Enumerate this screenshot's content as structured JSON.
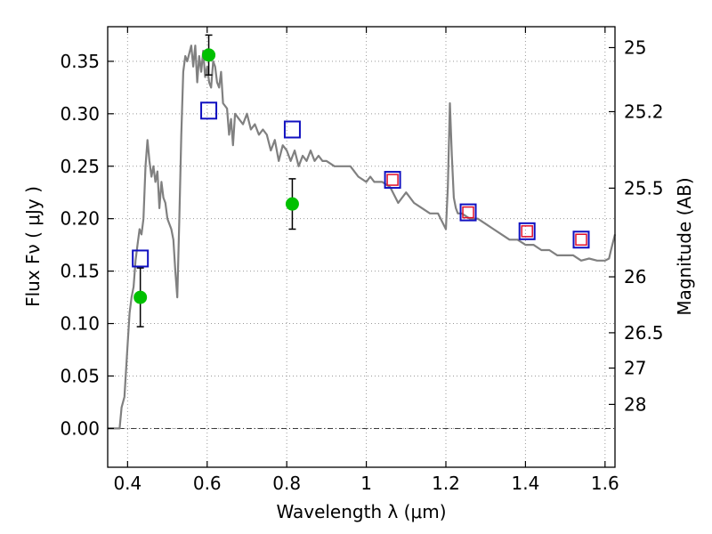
{
  "chart_data": {
    "type": "scatter",
    "xlabel": "Wavelength  λ (μm)",
    "ylabel": "Flux  Fν  ( μJy )",
    "y2label": "Magnitude (AB)",
    "xlim": [
      0.35,
      1.625
    ],
    "ylim": [
      -0.037,
      0.383
    ],
    "grid": true,
    "x_ticks": [
      {
        "value": 0.4,
        "label": "0.4"
      },
      {
        "value": 0.6,
        "label": "0.6"
      },
      {
        "value": 0.8,
        "label": "0.8"
      },
      {
        "value": 1.0,
        "label": "1"
      },
      {
        "value": 1.2,
        "label": "1.2"
      },
      {
        "value": 1.4,
        "label": "1.4"
      },
      {
        "value": 1.6,
        "label": "1.6"
      }
    ],
    "y_ticks": [
      {
        "value": 0.0,
        "label": "0.00"
      },
      {
        "value": 0.05,
        "label": "0.05"
      },
      {
        "value": 0.1,
        "label": "0.10"
      },
      {
        "value": 0.15,
        "label": "0.15"
      },
      {
        "value": 0.2,
        "label": "0.20"
      },
      {
        "value": 0.25,
        "label": "0.25"
      },
      {
        "value": 0.3,
        "label": "0.30"
      },
      {
        "value": 0.35,
        "label": "0.35"
      }
    ],
    "y2_ticks": [
      {
        "mag": 25.0,
        "label": "25"
      },
      {
        "mag": 25.2,
        "label": "25.2"
      },
      {
        "mag": 25.5,
        "label": "25.5"
      },
      {
        "mag": 26.0,
        "label": "26"
      },
      {
        "mag": 26.5,
        "label": "26.5"
      },
      {
        "mag": 27.0,
        "label": "27"
      },
      {
        "mag": 28.0,
        "label": "28"
      }
    ],
    "series": [
      {
        "kind": "line",
        "color": "#808080",
        "x": [
          0.35,
          0.38,
          0.385,
          0.392,
          0.4,
          0.405,
          0.41,
          0.415,
          0.42,
          0.425,
          0.43,
          0.435,
          0.44,
          0.445,
          0.45,
          0.455,
          0.46,
          0.465,
          0.47,
          0.475,
          0.48,
          0.485,
          0.49,
          0.495,
          0.5,
          0.505,
          0.51,
          0.515,
          0.52,
          0.525,
          0.53,
          0.535,
          0.54,
          0.545,
          0.55,
          0.56,
          0.565,
          0.57,
          0.575,
          0.58,
          0.585,
          0.59,
          0.595,
          0.6,
          0.605,
          0.61,
          0.615,
          0.62,
          0.625,
          0.63,
          0.635,
          0.64,
          0.65,
          0.655,
          0.66,
          0.665,
          0.67,
          0.68,
          0.69,
          0.7,
          0.71,
          0.72,
          0.73,
          0.74,
          0.75,
          0.76,
          0.77,
          0.78,
          0.79,
          0.8,
          0.81,
          0.82,
          0.83,
          0.84,
          0.85,
          0.86,
          0.87,
          0.88,
          0.89,
          0.9,
          0.92,
          0.94,
          0.96,
          0.98,
          1.0,
          1.01,
          1.02,
          1.04,
          1.06,
          1.08,
          1.09,
          1.1,
          1.12,
          1.14,
          1.16,
          1.18,
          1.2,
          1.205,
          1.21,
          1.215,
          1.22,
          1.225,
          1.23,
          1.24,
          1.26,
          1.28,
          1.3,
          1.32,
          1.34,
          1.36,
          1.38,
          1.4,
          1.42,
          1.44,
          1.46,
          1.48,
          1.5,
          1.52,
          1.54,
          1.56,
          1.58,
          1.6,
          1.61,
          1.615,
          1.625
        ],
        "y": [
          0.0,
          0.0,
          0.02,
          0.03,
          0.08,
          0.11,
          0.125,
          0.135,
          0.16,
          0.175,
          0.19,
          0.185,
          0.2,
          0.25,
          0.275,
          0.255,
          0.24,
          0.25,
          0.235,
          0.245,
          0.21,
          0.235,
          0.22,
          0.215,
          0.2,
          0.195,
          0.19,
          0.18,
          0.15,
          0.125,
          0.2,
          0.28,
          0.34,
          0.355,
          0.35,
          0.365,
          0.345,
          0.365,
          0.33,
          0.355,
          0.34,
          0.36,
          0.335,
          0.345,
          0.33,
          0.325,
          0.35,
          0.345,
          0.33,
          0.325,
          0.34,
          0.31,
          0.305,
          0.28,
          0.295,
          0.27,
          0.3,
          0.295,
          0.29,
          0.3,
          0.285,
          0.29,
          0.28,
          0.285,
          0.28,
          0.265,
          0.275,
          0.255,
          0.27,
          0.265,
          0.255,
          0.265,
          0.25,
          0.26,
          0.255,
          0.265,
          0.255,
          0.26,
          0.255,
          0.255,
          0.25,
          0.25,
          0.25,
          0.24,
          0.235,
          0.24,
          0.235,
          0.235,
          0.23,
          0.215,
          0.22,
          0.225,
          0.215,
          0.21,
          0.205,
          0.205,
          0.19,
          0.23,
          0.31,
          0.26,
          0.22,
          0.21,
          0.205,
          0.205,
          0.2,
          0.2,
          0.195,
          0.19,
          0.185,
          0.18,
          0.18,
          0.175,
          0.175,
          0.17,
          0.17,
          0.165,
          0.165,
          0.165,
          0.16,
          0.162,
          0.16,
          0.16,
          0.162,
          0.17,
          0.185
        ]
      },
      {
        "kind": "points",
        "marker": "filled-circle",
        "color": "#00c000",
        "x": [
          0.432,
          0.604,
          0.814
        ],
        "y": [
          0.125,
          0.356,
          0.214
        ],
        "yerr": [
          0.028,
          0.019,
          0.024
        ]
      },
      {
        "kind": "points",
        "marker": "open-square",
        "color": "#1010c0",
        "x": [
          0.432,
          0.604,
          0.814,
          1.066,
          1.256,
          1.404,
          1.54
        ],
        "y": [
          0.162,
          0.303,
          0.285,
          0.237,
          0.206,
          0.188,
          0.18
        ]
      },
      {
        "kind": "points",
        "marker": "open-square-small",
        "color": "#e0102a",
        "x": [
          1.066,
          1.256,
          1.404,
          1.54
        ],
        "y": [
          0.237,
          0.206,
          0.188,
          0.18
        ]
      }
    ],
    "reference_lines": [
      {
        "axis": "y",
        "value": 0.0,
        "style": "dash-dot"
      }
    ]
  }
}
